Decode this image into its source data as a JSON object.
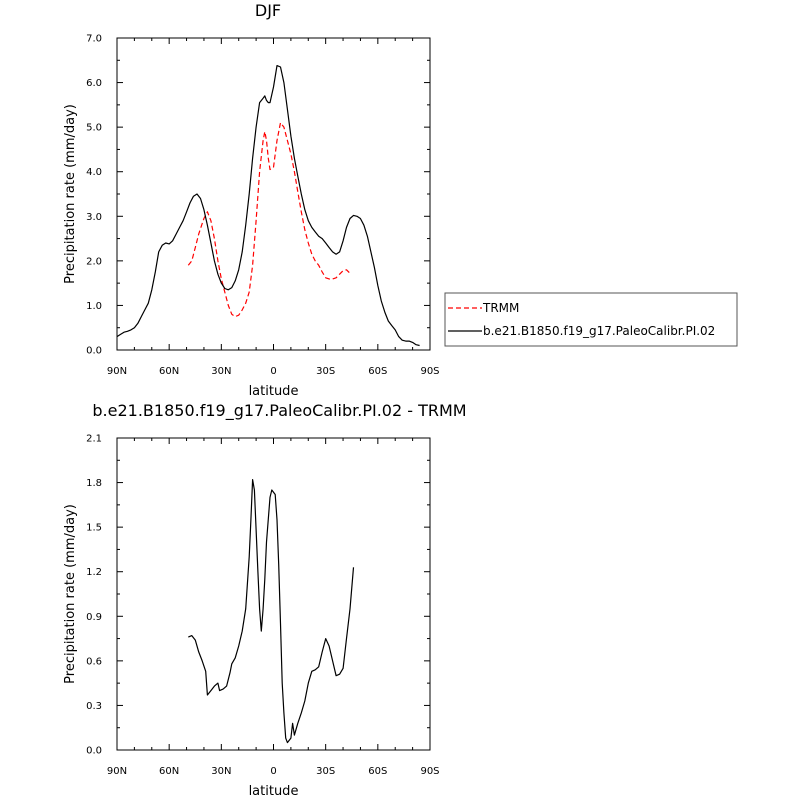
{
  "chart_data": [
    {
      "type": "line",
      "title": "DJF",
      "xlabel": "latitude",
      "ylabel": "Precipitation rate (mm/day)",
      "xlim": [
        90,
        -90
      ],
      "ylim": [
        0,
        7
      ],
      "xticks": [
        {
          "value": 90,
          "label": "90N"
        },
        {
          "value": 60,
          "label": "60N"
        },
        {
          "value": 30,
          "label": "30N"
        },
        {
          "value": 0,
          "label": "0"
        },
        {
          "value": -30,
          "label": "30S"
        },
        {
          "value": -60,
          "label": "60S"
        },
        {
          "value": -90,
          "label": "90S"
        }
      ],
      "yticks": [
        {
          "value": 0,
          "label": "0.0"
        },
        {
          "value": 1,
          "label": "1.0"
        },
        {
          "value": 2,
          "label": "2.0"
        },
        {
          "value": 3,
          "label": "3.0"
        },
        {
          "value": 4,
          "label": "4.0"
        },
        {
          "value": 5,
          "label": "5.0"
        },
        {
          "value": 6,
          "label": "6.0"
        },
        {
          "value": 7,
          "label": "7.0"
        }
      ],
      "grid": false,
      "legend": "right",
      "series": [
        {
          "name": "TRMM",
          "color": "#ff0000",
          "dash": true,
          "points": [
            [
              49,
              1.9
            ],
            [
              47,
              2.0
            ],
            [
              45,
              2.3
            ],
            [
              43,
              2.6
            ],
            [
              40,
              2.95
            ],
            [
              38,
              3.1
            ],
            [
              36,
              2.9
            ],
            [
              34,
              2.5
            ],
            [
              32,
              2.0
            ],
            [
              30,
              1.6
            ],
            [
              28,
              1.3
            ],
            [
              26,
              1.0
            ],
            [
              24,
              0.8
            ],
            [
              22,
              0.75
            ],
            [
              20,
              0.78
            ],
            [
              18,
              0.9
            ],
            [
              16,
              1.05
            ],
            [
              14,
              1.3
            ],
            [
              12,
              1.9
            ],
            [
              10,
              2.9
            ],
            [
              8,
              4.0
            ],
            [
              6,
              4.7
            ],
            [
              5,
              4.9
            ],
            [
              4,
              4.7
            ],
            [
              3,
              4.3
            ],
            [
              2,
              4.05
            ],
            [
              0,
              4.1
            ],
            [
              -2,
              4.7
            ],
            [
              -4,
              5.1
            ],
            [
              -6,
              5.0
            ],
            [
              -8,
              4.7
            ],
            [
              -10,
              4.4
            ],
            [
              -12,
              4.0
            ],
            [
              -14,
              3.55
            ],
            [
              -16,
              3.1
            ],
            [
              -18,
              2.7
            ],
            [
              -20,
              2.4
            ],
            [
              -22,
              2.15
            ],
            [
              -24,
              2.0
            ],
            [
              -26,
              1.9
            ],
            [
              -28,
              1.75
            ],
            [
              -30,
              1.62
            ],
            [
              -33,
              1.58
            ],
            [
              -36,
              1.62
            ],
            [
              -38,
              1.7
            ],
            [
              -40,
              1.78
            ],
            [
              -42,
              1.8
            ],
            [
              -44,
              1.72
            ]
          ]
        },
        {
          "name": "b.e21.B1850.f19_g17.PaleoCalibr.PI.02",
          "color": "#000000",
          "dash": false,
          "points": [
            [
              90,
              0.3
            ],
            [
              88,
              0.35
            ],
            [
              86,
              0.4
            ],
            [
              84,
              0.42
            ],
            [
              82,
              0.45
            ],
            [
              80,
              0.5
            ],
            [
              78,
              0.6
            ],
            [
              76,
              0.75
            ],
            [
              74,
              0.9
            ],
            [
              72,
              1.05
            ],
            [
              70,
              1.35
            ],
            [
              68,
              1.75
            ],
            [
              66,
              2.2
            ],
            [
              64,
              2.35
            ],
            [
              62,
              2.4
            ],
            [
              60,
              2.38
            ],
            [
              58,
              2.45
            ],
            [
              56,
              2.6
            ],
            [
              54,
              2.75
            ],
            [
              52,
              2.9
            ],
            [
              50,
              3.1
            ],
            [
              48,
              3.3
            ],
            [
              46,
              3.45
            ],
            [
              44,
              3.5
            ],
            [
              42,
              3.4
            ],
            [
              40,
              3.15
            ],
            [
              38,
              2.8
            ],
            [
              36,
              2.4
            ],
            [
              34,
              2.0
            ],
            [
              32,
              1.7
            ],
            [
              30,
              1.5
            ],
            [
              28,
              1.38
            ],
            [
              26,
              1.35
            ],
            [
              24,
              1.4
            ],
            [
              22,
              1.55
            ],
            [
              20,
              1.8
            ],
            [
              18,
              2.2
            ],
            [
              16,
              2.8
            ],
            [
              14,
              3.5
            ],
            [
              12,
              4.3
            ],
            [
              10,
              5.0
            ],
            [
              8,
              5.55
            ],
            [
              6,
              5.65
            ],
            [
              5,
              5.7
            ],
            [
              4,
              5.6
            ],
            [
              3,
              5.55
            ],
            [
              2,
              5.55
            ],
            [
              0,
              5.9
            ],
            [
              -2,
              6.38
            ],
            [
              -4,
              6.35
            ],
            [
              -6,
              6.0
            ],
            [
              -8,
              5.4
            ],
            [
              -10,
              4.8
            ],
            [
              -12,
              4.3
            ],
            [
              -14,
              3.9
            ],
            [
              -16,
              3.5
            ],
            [
              -18,
              3.15
            ],
            [
              -20,
              2.9
            ],
            [
              -22,
              2.75
            ],
            [
              -24,
              2.65
            ],
            [
              -26,
              2.55
            ],
            [
              -28,
              2.5
            ],
            [
              -30,
              2.4
            ],
            [
              -32,
              2.3
            ],
            [
              -34,
              2.2
            ],
            [
              -36,
              2.15
            ],
            [
              -38,
              2.2
            ],
            [
              -40,
              2.45
            ],
            [
              -42,
              2.75
            ],
            [
              -44,
              2.95
            ],
            [
              -46,
              3.02
            ],
            [
              -48,
              3.0
            ],
            [
              -50,
              2.95
            ],
            [
              -52,
              2.8
            ],
            [
              -54,
              2.55
            ],
            [
              -56,
              2.2
            ],
            [
              -58,
              1.85
            ],
            [
              -60,
              1.45
            ],
            [
              -62,
              1.1
            ],
            [
              -64,
              0.85
            ],
            [
              -66,
              0.65
            ],
            [
              -68,
              0.55
            ],
            [
              -70,
              0.45
            ],
            [
              -72,
              0.3
            ],
            [
              -74,
              0.22
            ],
            [
              -76,
              0.2
            ],
            [
              -78,
              0.2
            ],
            [
              -80,
              0.17
            ],
            [
              -82,
              0.12
            ],
            [
              -84,
              0.1
            ]
          ]
        }
      ]
    },
    {
      "type": "line",
      "title": "b.e21.B1850.f19_g17.PaleoCalibr.PI.02 - TRMM",
      "xlabel": "latitude",
      "ylabel": "Precipitation rate (mm/day)",
      "xlim": [
        90,
        -90
      ],
      "ylim": [
        0,
        2.1
      ],
      "xticks": [
        {
          "value": 90,
          "label": "90N"
        },
        {
          "value": 60,
          "label": "60N"
        },
        {
          "value": 30,
          "label": "30N"
        },
        {
          "value": 0,
          "label": "0"
        },
        {
          "value": -30,
          "label": "30S"
        },
        {
          "value": -60,
          "label": "60S"
        },
        {
          "value": -90,
          "label": "90S"
        }
      ],
      "yticks": [
        {
          "value": 0,
          "label": "0.0"
        },
        {
          "value": 0.3,
          "label": "0.3"
        },
        {
          "value": 0.6,
          "label": "0.6"
        },
        {
          "value": 0.9,
          "label": "0.9"
        },
        {
          "value": 1.2,
          "label": "1.2"
        },
        {
          "value": 1.5,
          "label": "1.5"
        },
        {
          "value": 1.8,
          "label": "1.8"
        },
        {
          "value": 2.1,
          "label": "2.1"
        }
      ],
      "grid": false,
      "series": [
        {
          "color": "#000000",
          "dash": false,
          "points": [
            [
              49,
              0.76
            ],
            [
              47,
              0.77
            ],
            [
              45,
              0.74
            ],
            [
              43,
              0.66
            ],
            [
              41,
              0.6
            ],
            [
              39,
              0.53
            ],
            [
              38,
              0.37
            ],
            [
              36,
              0.4
            ],
            [
              34,
              0.43
            ],
            [
              32,
              0.45
            ],
            [
              31,
              0.4
            ],
            [
              29,
              0.41
            ],
            [
              27,
              0.43
            ],
            [
              25,
              0.52
            ],
            [
              24,
              0.58
            ],
            [
              22,
              0.62
            ],
            [
              20,
              0.7
            ],
            [
              18,
              0.8
            ],
            [
              16,
              0.95
            ],
            [
              14,
              1.3
            ],
            [
              13,
              1.55
            ],
            [
              12,
              1.82
            ],
            [
              11,
              1.75
            ],
            [
              9,
              1.2
            ],
            [
              8,
              0.95
            ],
            [
              7,
              0.8
            ],
            [
              6,
              0.95
            ],
            [
              5,
              1.15
            ],
            [
              4,
              1.4
            ],
            [
              2,
              1.7
            ],
            [
              1,
              1.75
            ],
            [
              -1,
              1.72
            ],
            [
              -2,
              1.55
            ],
            [
              -3,
              1.25
            ],
            [
              -4,
              0.85
            ],
            [
              -5,
              0.45
            ],
            [
              -6,
              0.25
            ],
            [
              -7,
              0.08
            ],
            [
              -8,
              0.05
            ],
            [
              -10,
              0.08
            ],
            [
              -11,
              0.18
            ],
            [
              -12,
              0.1
            ],
            [
              -14,
              0.18
            ],
            [
              -16,
              0.25
            ],
            [
              -18,
              0.33
            ],
            [
              -20,
              0.45
            ],
            [
              -22,
              0.53
            ],
            [
              -24,
              0.54
            ],
            [
              -26,
              0.56
            ],
            [
              -28,
              0.66
            ],
            [
              -30,
              0.75
            ],
            [
              -32,
              0.7
            ],
            [
              -34,
              0.6
            ],
            [
              -36,
              0.5
            ],
            [
              -38,
              0.51
            ],
            [
              -40,
              0.55
            ],
            [
              -42,
              0.75
            ],
            [
              -44,
              0.95
            ],
            [
              -46,
              1.23
            ]
          ]
        }
      ]
    }
  ]
}
